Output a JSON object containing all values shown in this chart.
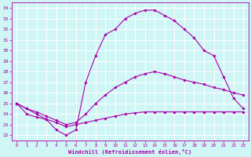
{
  "xlabel": "Windchill (Refroidissement éolien,°C)",
  "xlim": [
    -0.5,
    23.5
  ],
  "ylim": [
    21.5,
    34.5
  ],
  "yticks": [
    22,
    23,
    24,
    25,
    26,
    27,
    28,
    29,
    30,
    31,
    32,
    33,
    34
  ],
  "xticks": [
    0,
    1,
    2,
    3,
    4,
    5,
    6,
    7,
    8,
    9,
    10,
    11,
    12,
    13,
    14,
    15,
    16,
    17,
    18,
    19,
    20,
    21,
    22,
    23
  ],
  "bg_color": "#cff5f5",
  "line_color": "#aa00aa",
  "grid_color": "#ffffff",
  "lines": [
    {
      "x": [
        0,
        1,
        2,
        3,
        4,
        5,
        6,
        7,
        8,
        9,
        10,
        11,
        12,
        13,
        14,
        15,
        16,
        17,
        18,
        19,
        20,
        21,
        22,
        23
      ],
      "y": [
        25,
        24,
        23.7,
        23.5,
        23.2,
        22.8,
        23.0,
        23.2,
        23.4,
        23.6,
        23.8,
        24.0,
        24.1,
        24.2,
        24.2,
        24.2,
        24.2,
        24.2,
        24.2,
        24.2,
        24.2,
        24.2,
        24.2,
        24.2
      ]
    },
    {
      "x": [
        0,
        1,
        2,
        3,
        4,
        5,
        6,
        7,
        8,
        9,
        10,
        11,
        12,
        13,
        14,
        15,
        16,
        17,
        18,
        19,
        20,
        21,
        22,
        23
      ],
      "y": [
        25,
        24.5,
        24.2,
        23.8,
        23.4,
        23.0,
        23.2,
        24.0,
        25.0,
        25.8,
        26.5,
        27.0,
        27.5,
        27.8,
        28.0,
        27.8,
        27.5,
        27.2,
        27.0,
        26.8,
        26.5,
        26.3,
        26.0,
        25.8
      ]
    },
    {
      "x": [
        0,
        1,
        2,
        3,
        4,
        5,
        6,
        7,
        8,
        9,
        10,
        11,
        12,
        13,
        14,
        15,
        16,
        17,
        18,
        19,
        20,
        21,
        22,
        23
      ],
      "y": [
        25,
        24.5,
        24.0,
        23.5,
        22.5,
        22.0,
        22.5,
        27.0,
        29.5,
        31.5,
        32.0,
        33.0,
        33.5,
        33.8,
        33.8,
        33.3,
        32.8,
        32.0,
        31.2,
        30.0,
        29.5,
        27.5,
        25.5,
        24.5
      ]
    }
  ]
}
